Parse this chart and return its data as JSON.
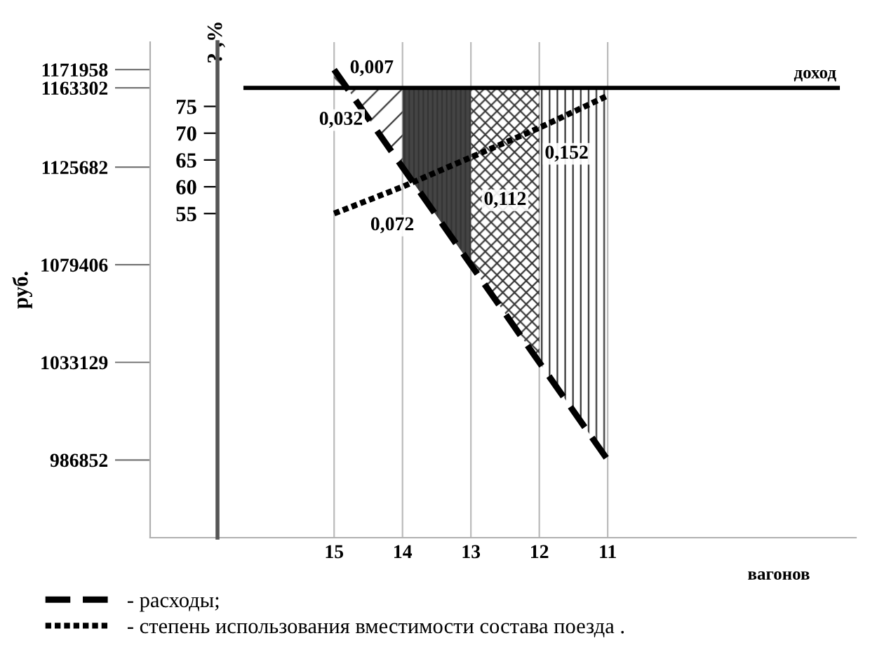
{
  "chart_data": {
    "type": "line",
    "xlabel": "вагонов",
    "ylabel": "руб.",
    "y2label": "? ,%",
    "x": [
      15,
      14,
      13,
      12,
      11
    ],
    "xlim": [
      17.69,
      7.37
    ],
    "xticks": [
      15,
      14,
      13,
      12,
      11
    ],
    "ylim": [
      950000,
      1185000
    ],
    "yticks": [
      1171958,
      1163302,
      1125682,
      1079406,
      1033129,
      986852
    ],
    "y2lim": [
      -5.5,
      87
    ],
    "y2ticks": [
      55,
      60,
      65,
      70,
      75
    ],
    "series": [
      {
        "name": "- расходы;",
        "color": "#000000",
        "line_style": "dashed",
        "values": [
          1171958,
          1125682,
          1079406,
          1033129,
          986852
        ]
      },
      {
        "name": "- степень использования вместимости состава поезда .",
        "color": "#000000",
        "line_style": "dotted",
        "axis": "y2",
        "values": [
          55,
          60,
          65.5,
          71,
          77
        ]
      }
    ],
    "ref_lines": [
      {
        "axis": "y",
        "value": 1163302,
        "label": "доход",
        "color": "#000000"
      }
    ],
    "annotations": [
      {
        "text": "0,007",
        "x": 14.45,
        "y": 1172500
      },
      {
        "text": "0,032",
        "x": 14.9,
        "y": 1148000
      },
      {
        "text": "0,072",
        "x": 14.15,
        "y": 1098000
      },
      {
        "text": "0,112",
        "x": 12.5,
        "y": 1110000
      },
      {
        "text": "0,152",
        "x": 11.6,
        "y": 1132000
      }
    ],
    "grid": "x",
    "legend": "bottom left",
    "marker": "none"
  }
}
